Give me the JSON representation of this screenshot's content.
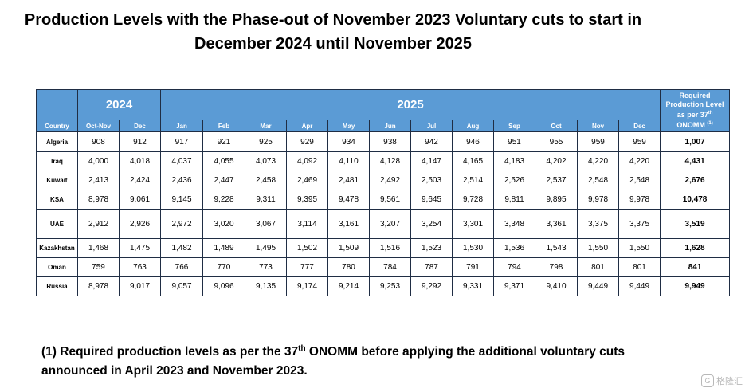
{
  "title": {
    "line1": "Production Levels with the Phase-out of November 2023 Voluntary cuts to start in",
    "line2": "December 2024 until November 2025"
  },
  "table": {
    "year_2024": "2024",
    "year_2025": "2025",
    "required_header": {
      "line1": "Required",
      "line2": "Production Level",
      "line3": "as per 37",
      "sup": "th",
      "line4": "ONOMM",
      "note_ref": "(1)"
    },
    "country_header": "Country",
    "months": [
      "Oct-Nov",
      "Dec",
      "Jan",
      "Feb",
      "Mar",
      "Apr",
      "May",
      "Jun",
      "Jul",
      "Aug",
      "Sep",
      "Oct",
      "Nov",
      "Dec"
    ],
    "rows": [
      {
        "country": "Algeria",
        "values": [
          "908",
          "912",
          "917",
          "921",
          "925",
          "929",
          "934",
          "938",
          "942",
          "946",
          "951",
          "955",
          "959",
          "959"
        ],
        "required": "1,007"
      },
      {
        "country": "Iraq",
        "values": [
          "4,000",
          "4,018",
          "4,037",
          "4,055",
          "4,073",
          "4,092",
          "4,110",
          "4,128",
          "4,147",
          "4,165",
          "4,183",
          "4,202",
          "4,220",
          "4,220"
        ],
        "required": "4,431"
      },
      {
        "country": "Kuwait",
        "values": [
          "2,413",
          "2,424",
          "2,436",
          "2,447",
          "2,458",
          "2,469",
          "2,481",
          "2,492",
          "2,503",
          "2,514",
          "2,526",
          "2,537",
          "2,548",
          "2,548"
        ],
        "required": "2,676"
      },
      {
        "country": "KSA",
        "values": [
          "8,978",
          "9,061",
          "9,145",
          "9,228",
          "9,311",
          "9,395",
          "9,478",
          "9,561",
          "9,645",
          "9,728",
          "9,811",
          "9,895",
          "9,978",
          "9,978"
        ],
        "required": "10,478"
      },
      {
        "country": "UAE",
        "values": [
          "2,912",
          "2,926",
          "2,972",
          "3,020",
          "3,067",
          "3,114",
          "3,161",
          "3,207",
          "3,254",
          "3,301",
          "3,348",
          "3,361",
          "3,375",
          "3,375"
        ],
        "required": "3,519"
      },
      {
        "country": "Kazakhstan",
        "values": [
          "1,468",
          "1,475",
          "1,482",
          "1,489",
          "1,495",
          "1,502",
          "1,509",
          "1,516",
          "1,523",
          "1,530",
          "1,536",
          "1,543",
          "1,550",
          "1,550"
        ],
        "required": "1,628"
      },
      {
        "country": "Oman",
        "values": [
          "759",
          "763",
          "766",
          "770",
          "773",
          "777",
          "780",
          "784",
          "787",
          "791",
          "794",
          "798",
          "801",
          "801"
        ],
        "required": "841"
      },
      {
        "country": "Russia",
        "values": [
          "8,978",
          "9,017",
          "9,057",
          "9,096",
          "9,135",
          "9,174",
          "9,214",
          "9,253",
          "9,292",
          "9,331",
          "9,371",
          "9,410",
          "9,449",
          "9,449"
        ],
        "required": "9,949"
      }
    ]
  },
  "footnote": {
    "part1": "(1) Required production levels as per the 37",
    "sup": "th",
    "part2": " ONOMM before applying the additional voluntary cuts",
    "line2": "announced in April 2023 and November 2023."
  },
  "watermark": {
    "icon_name": "gelonghui-logo-icon",
    "glyph": "G",
    "text": "格隆汇"
  },
  "colors": {
    "header_bg": "#5b9bd5",
    "header_text": "#ffffff",
    "border": "#1f2d44"
  }
}
